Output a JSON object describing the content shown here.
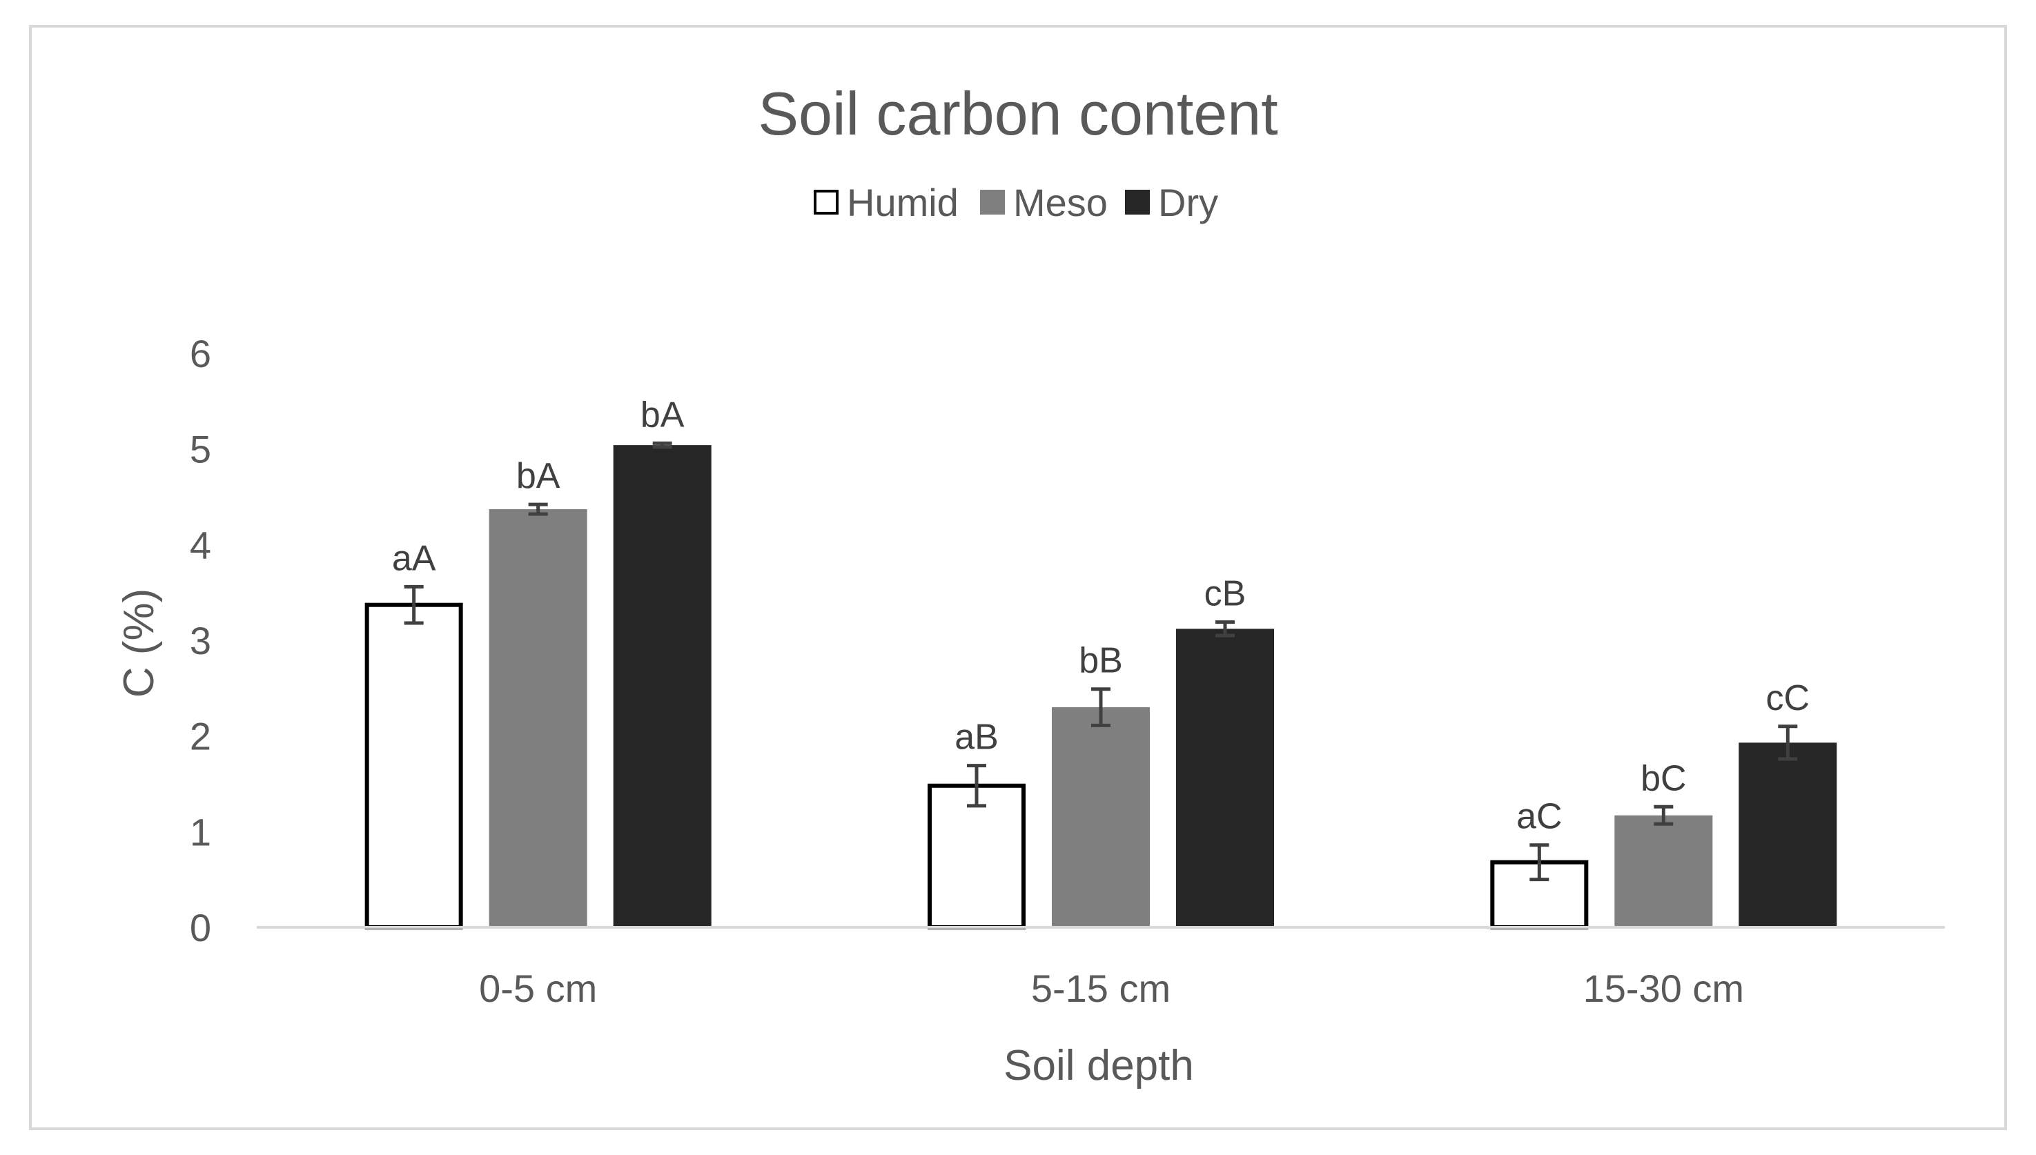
{
  "chart_data": {
    "type": "bar",
    "title": "Soil carbon content",
    "xlabel": "Soil depth",
    "ylabel": "C (%)",
    "ylim": [
      0,
      6
    ],
    "yticks": [
      "0",
      "1",
      "2",
      "3",
      "4",
      "5",
      "6"
    ],
    "categories": [
      "0-5 cm",
      "5-15 cm",
      "15-30 cm"
    ],
    "legend_position": "top",
    "grid": false,
    "series": [
      {
        "name": "Humid",
        "color": "#ffffff",
        "stroke": "#000000",
        "values": [
          3.37,
          1.48,
          0.68
        ],
        "errors": [
          0.19,
          0.21,
          0.18
        ],
        "labels": [
          "aA",
          "aB",
          "aC"
        ]
      },
      {
        "name": "Meso",
        "color": "#7f7f7f",
        "stroke": "#7f7f7f",
        "values": [
          4.37,
          2.3,
          1.17
        ],
        "errors": [
          0.05,
          0.19,
          0.09
        ],
        "labels": [
          "bA",
          "bB",
          "bC"
        ]
      },
      {
        "name": "Dry",
        "color": "#262626",
        "stroke": "#262626",
        "values": [
          5.04,
          3.12,
          1.93
        ],
        "errors": [
          0.02,
          0.07,
          0.17
        ],
        "labels": [
          "bA",
          "cB",
          "cC"
        ]
      }
    ]
  }
}
